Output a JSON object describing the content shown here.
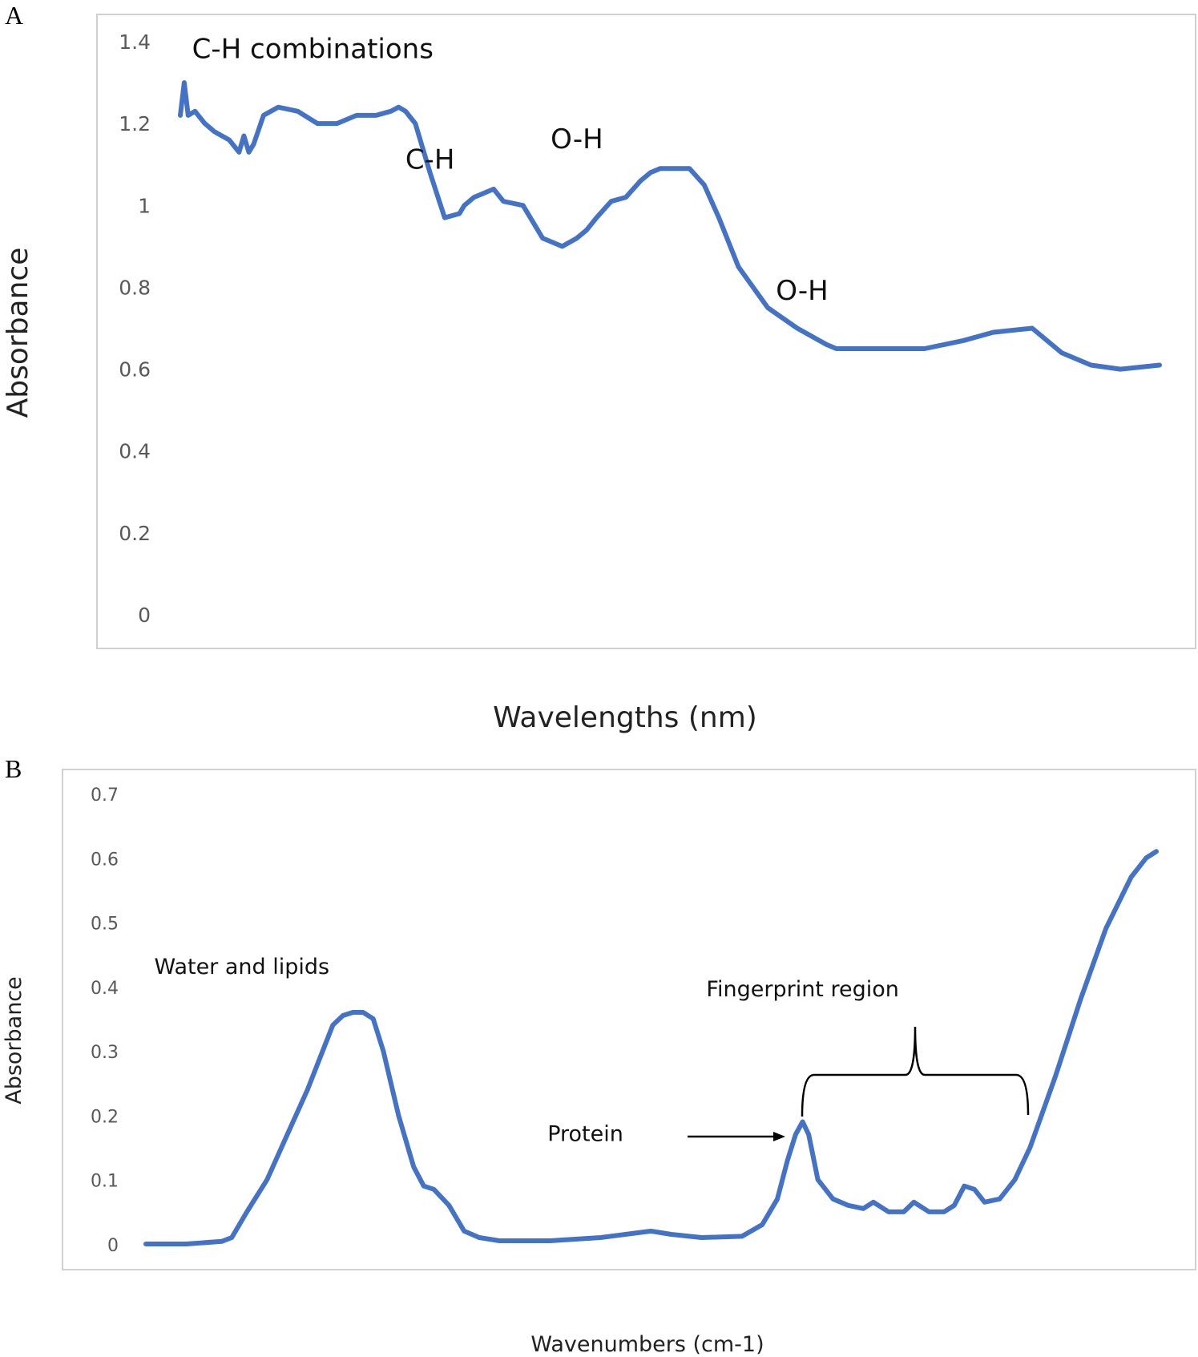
{
  "chart_data": [
    {
      "panel": "A",
      "type": "line",
      "title": "",
      "xlabel": "Wavelengths (nm)",
      "ylabel": "Absorbance",
      "ylim": [
        0,
        1.4
      ],
      "yticks": [
        "0",
        "0.2",
        "0.4",
        "0.6",
        "0.8",
        "1",
        "1.2",
        "1.4"
      ],
      "x_ticks_shown": false,
      "grid": false,
      "series_color": "#4472c4",
      "x": [
        0.0,
        0.4,
        0.8,
        1.5,
        2.5,
        3.5,
        5.0,
        6.0,
        6.5,
        7.0,
        7.5,
        8.5,
        10.0,
        12.0,
        14.0,
        16.0,
        18.0,
        20.0,
        21.5,
        22.3,
        23.0,
        24.0,
        25.5,
        27.0,
        28.5,
        29.0,
        29.5,
        30.0,
        31.0,
        32.0,
        33.0,
        35.0,
        37.0,
        39.0,
        40.5,
        41.5,
        42.5,
        44.0,
        45.5,
        47.0,
        48.0,
        49.0,
        50.0,
        51.0,
        52.0,
        53.5,
        55.0,
        57.0,
        60.0,
        63.0,
        66.0,
        67.0,
        69.0,
        72.0,
        76.0,
        78.0,
        80.0,
        83.0,
        87.0,
        90.0,
        93.0,
        96.0,
        100.0
      ],
      "values": [
        1.22,
        1.3,
        1.22,
        1.23,
        1.2,
        1.18,
        1.16,
        1.13,
        1.17,
        1.13,
        1.15,
        1.22,
        1.24,
        1.23,
        1.2,
        1.2,
        1.22,
        1.22,
        1.23,
        1.24,
        1.23,
        1.2,
        1.08,
        0.97,
        0.98,
        1.0,
        1.01,
        1.02,
        1.03,
        1.04,
        1.01,
        1.0,
        0.92,
        0.9,
        0.92,
        0.94,
        0.97,
        1.01,
        1.02,
        1.06,
        1.08,
        1.09,
        1.09,
        1.09,
        1.09,
        1.05,
        0.97,
        0.85,
        0.75,
        0.7,
        0.66,
        0.65,
        0.65,
        0.65,
        0.65,
        0.66,
        0.67,
        0.69,
        0.7,
        0.64,
        0.61,
        0.6,
        0.61
      ],
      "annotations": [
        {
          "text": "C-H combinations",
          "x": 1.2,
          "y": 1.36
        },
        {
          "text": "C-H",
          "x": 25.5,
          "y": 1.09
        },
        {
          "text": "O-H",
          "x": 40.5,
          "y": 1.14
        },
        {
          "text": "O-H",
          "x": 63.5,
          "y": 0.77
        }
      ]
    },
    {
      "panel": "B",
      "type": "line",
      "title": "",
      "xlabel": "Wavenumbers (cm-1)",
      "ylabel": "Absorbance",
      "ylim": [
        0,
        0.7
      ],
      "yticks": [
        "0",
        "0.1",
        "0.2",
        "0.3",
        "0.4",
        "0.5",
        "0.6",
        "0.7"
      ],
      "x_ticks_shown": false,
      "grid": false,
      "series_color": "#4472c4",
      "x": [
        0.0,
        4.0,
        7.5,
        8.5,
        10.0,
        12.0,
        14.0,
        16.0,
        17.5,
        18.5,
        19.5,
        20.5,
        21.5,
        22.5,
        23.5,
        25.0,
        26.5,
        27.5,
        28.5,
        30.0,
        31.5,
        33.0,
        35.0,
        40.0,
        45.0,
        50.0,
        52.0,
        55.0,
        59.0,
        61.0,
        62.5,
        63.5,
        64.3,
        65.0,
        65.6,
        66.5,
        68.0,
        69.5,
        71.0,
        72.0,
        73.5,
        75.0,
        76.0,
        77.5,
        79.0,
        80.0,
        81.0,
        82.0,
        83.0,
        84.5,
        86.0,
        87.5,
        90.0,
        92.5,
        95.0,
        97.5,
        99.0,
        100.0
      ],
      "values": [
        0.0,
        0.0,
        0.004,
        0.01,
        0.05,
        0.1,
        0.17,
        0.24,
        0.3,
        0.34,
        0.355,
        0.36,
        0.36,
        0.35,
        0.3,
        0.2,
        0.12,
        0.09,
        0.085,
        0.06,
        0.02,
        0.01,
        0.005,
        0.005,
        0.01,
        0.02,
        0.015,
        0.01,
        0.012,
        0.03,
        0.07,
        0.13,
        0.17,
        0.19,
        0.17,
        0.1,
        0.07,
        0.06,
        0.055,
        0.065,
        0.05,
        0.05,
        0.065,
        0.05,
        0.05,
        0.06,
        0.09,
        0.085,
        0.065,
        0.07,
        0.1,
        0.15,
        0.26,
        0.38,
        0.49,
        0.57,
        0.6,
        0.61
      ],
      "annotations": [
        {
          "text": "Water and lipids",
          "x": 9.5,
          "y": 0.42
        },
        {
          "text": "Fingerprint region",
          "x": 65.0,
          "y": 0.385
        },
        {
          "text": "Protein",
          "x": 43.5,
          "y": 0.16
        }
      ]
    }
  ],
  "panels": {
    "a": {
      "letter": "A"
    },
    "b": {
      "letter": "B"
    }
  }
}
